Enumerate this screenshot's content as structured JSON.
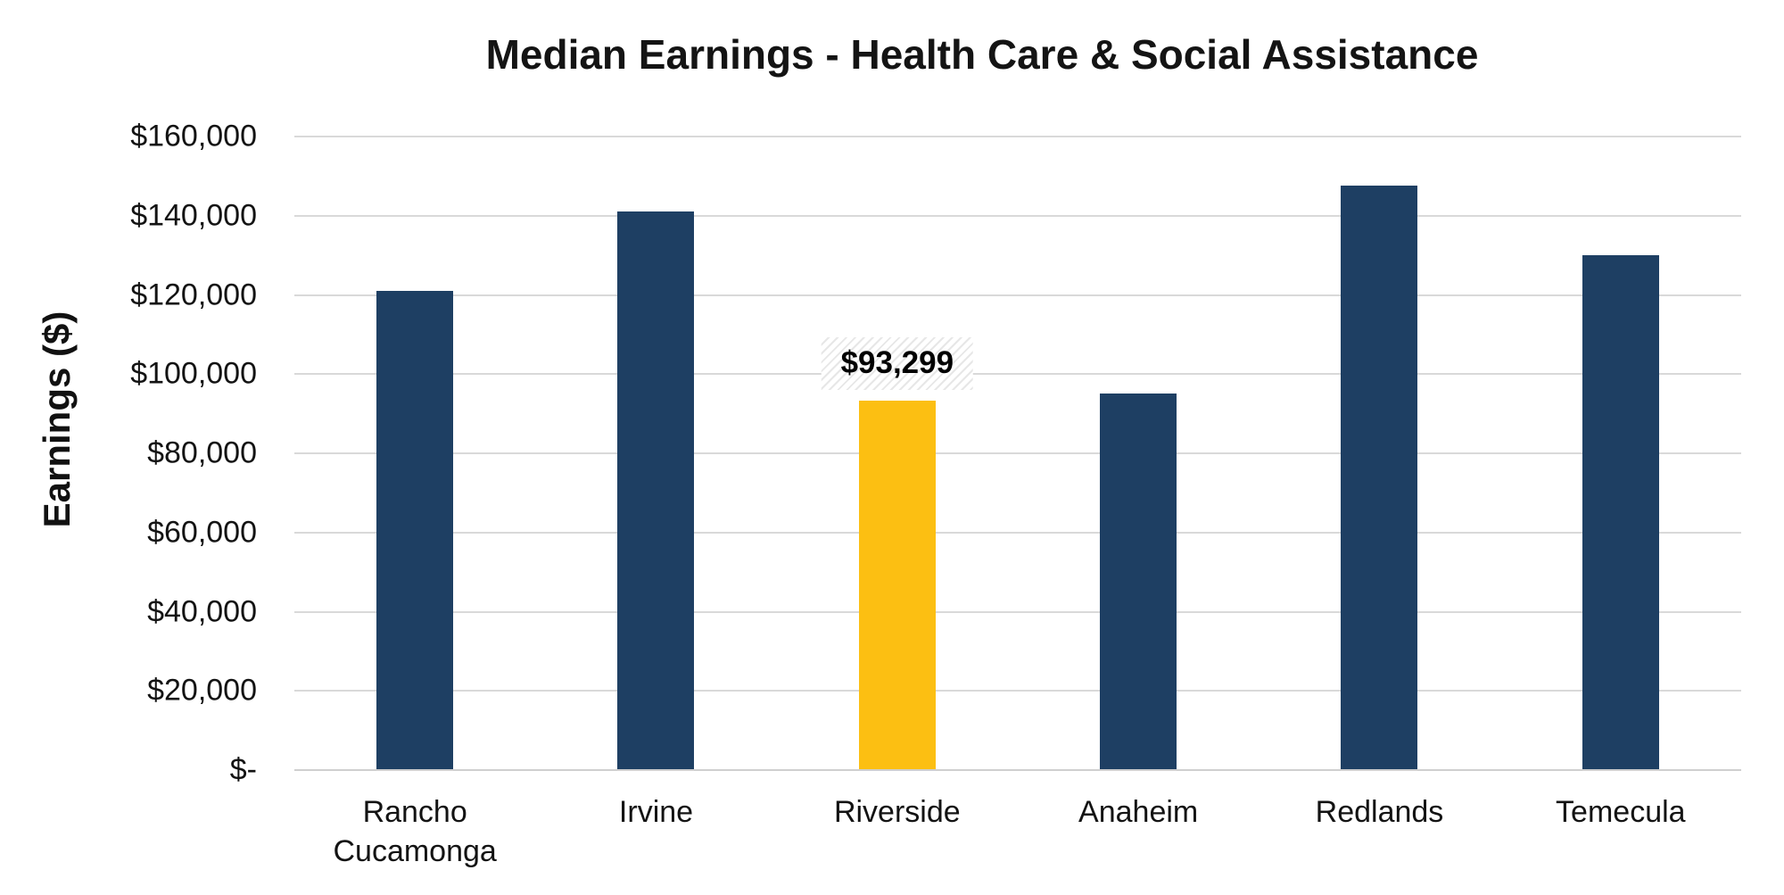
{
  "chart_data": {
    "type": "bar",
    "title": "Median Earnings - Health Care & Social Assistance",
    "xlabel": "",
    "ylabel": "Earnings ($)",
    "ylim": [
      0,
      160000
    ],
    "y_tick_interval": 20000,
    "y_ticks": [
      "$160,000",
      "$140,000",
      "$120,000",
      "$100,000",
      "$80,000",
      "$60,000",
      "$40,000",
      "$20,000",
      "$-"
    ],
    "categories": [
      "Rancho Cucamonga",
      "Irvine",
      "Riverside",
      "Anaheim",
      "Redlands",
      "Temecula"
    ],
    "values": [
      121000,
      141000,
      93299,
      95000,
      147500,
      130000
    ],
    "grid": true,
    "legend_position": "none",
    "highlight": {
      "category": "Riverside",
      "value": 93299,
      "label": "$93,299"
    },
    "colors": {
      "bar": "#1e3f63",
      "highlight_bar": "#fcbf12",
      "gridline": "#d9d9d9",
      "axis_line": "#cfcfcf",
      "label_text": "#000000"
    }
  }
}
